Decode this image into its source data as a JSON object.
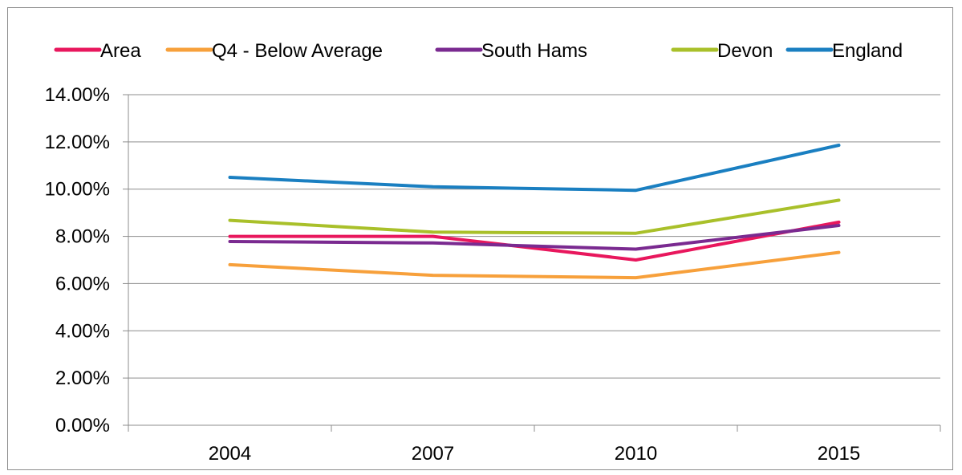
{
  "chart_data": {
    "type": "line",
    "title": "",
    "xlabel": "",
    "ylabel": "",
    "categories": [
      "2004",
      "2007",
      "2010",
      "2015"
    ],
    "ylim": [
      0,
      0.14
    ],
    "y_ticks": [
      "0.00%",
      "2.00%",
      "4.00%",
      "6.00%",
      "8.00%",
      "10.00%",
      "12.00%",
      "14.00%"
    ],
    "grid": true,
    "legend_position": "top",
    "series": [
      {
        "name": "Area",
        "color": "#e8175d",
        "values": [
          0.08,
          0.08,
          0.07,
          0.086
        ]
      },
      {
        "name": "Q4 - Below Average",
        "color": "#f7a03b",
        "values": [
          0.068,
          0.0635,
          0.0625,
          0.0732
        ]
      },
      {
        "name": "South Hams",
        "color": "#7a2a90",
        "values": [
          0.0778,
          0.0772,
          0.0746,
          0.0846
        ]
      },
      {
        "name": "Devon",
        "color": "#a9c02a",
        "values": [
          0.0868,
          0.0818,
          0.0813,
          0.0953
        ]
      },
      {
        "name": "England",
        "color": "#1a7fc1",
        "values": [
          0.105,
          0.101,
          0.0995,
          0.1186
        ]
      }
    ]
  }
}
